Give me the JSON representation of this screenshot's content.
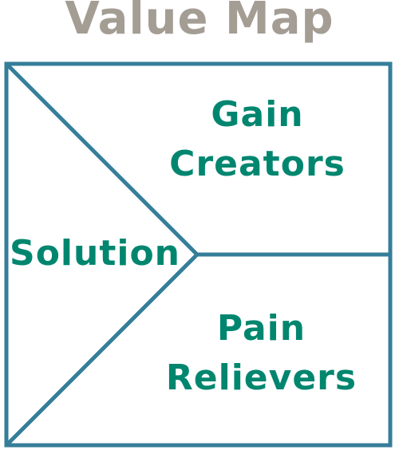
{
  "title": "Value Map",
  "regions": {
    "gain_creators": [
      "Gain",
      "Creators"
    ],
    "pain_relievers": [
      "Pain",
      "Relievers"
    ],
    "solution": "Solution"
  },
  "colors": {
    "title": "#a39d94",
    "label": "#00866f",
    "frame": "#357e99"
  }
}
